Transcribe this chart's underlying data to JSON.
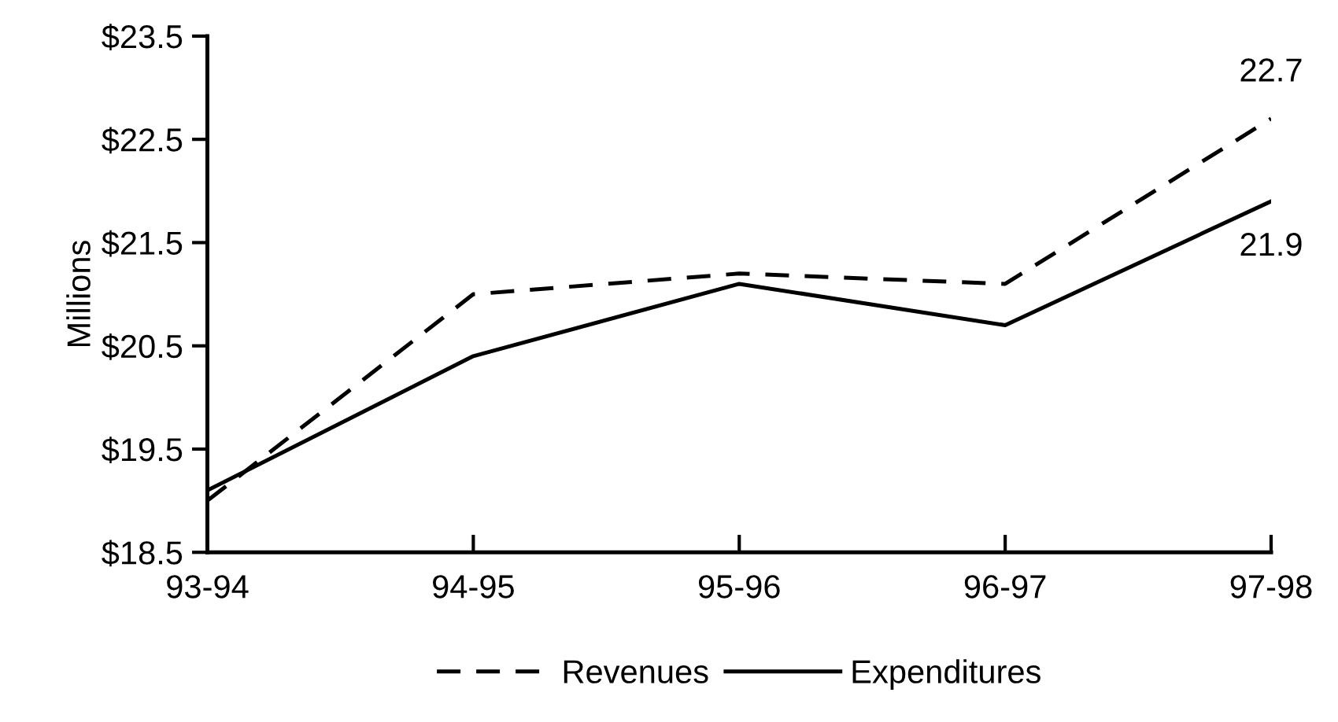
{
  "chart_data": {
    "type": "line",
    "ylabel": "Millions",
    "categories": [
      "93-94",
      "94-95",
      "95-96",
      "96-97",
      "97-98"
    ],
    "series": [
      {
        "name": "Revenues",
        "color": "#000000",
        "line_style": "dashed",
        "values": [
          19.0,
          21.0,
          21.2,
          21.1,
          22.7
        ],
        "value_labels": [
          null,
          null,
          null,
          null,
          "22.7"
        ]
      },
      {
        "name": "Expenditures",
        "color": "#000000",
        "line_style": "solid",
        "values": [
          19.1,
          20.4,
          21.1,
          20.7,
          21.9
        ],
        "value_labels": [
          null,
          null,
          null,
          null,
          "21.9"
        ]
      }
    ],
    "ylim": [
      18.5,
      23.5
    ],
    "yticks": [
      {
        "value": 18.5,
        "label": "$18.5"
      },
      {
        "value": 19.5,
        "label": "$19.5"
      },
      {
        "value": 20.5,
        "label": "$20.5"
      },
      {
        "value": 21.5,
        "label": "$21.5"
      },
      {
        "value": 22.5,
        "label": "$22.5"
      },
      {
        "value": 23.5,
        "label": "$23.5"
      }
    ],
    "grid": false,
    "legend": "bottom",
    "marker": "none"
  }
}
